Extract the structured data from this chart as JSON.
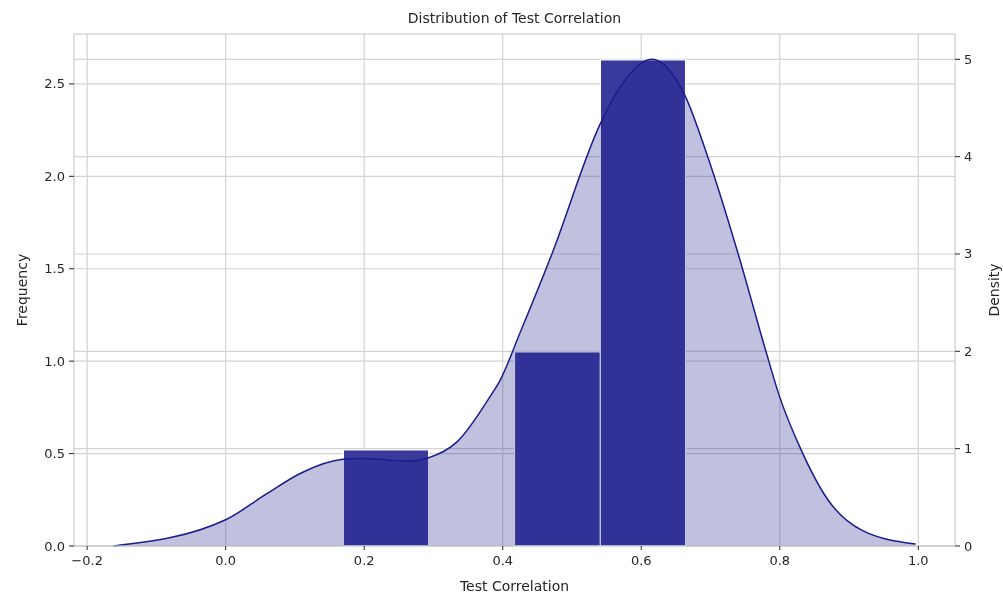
{
  "chart_data": {
    "type": "histogram",
    "title": "Distribution of Test Correlation",
    "xlabel": "Test Correlation",
    "ylabel": "Frequency",
    "y2label": "Density",
    "xlim": [
      -0.219,
      1.053
    ],
    "xticks": [
      {
        "value": -0.2,
        "label": "−0.2"
      },
      {
        "value": 0,
        "label": "0.0"
      },
      {
        "value": 0.2,
        "label": "0.2"
      },
      {
        "value": 0.4,
        "label": "0.4"
      },
      {
        "value": 0.6,
        "label": "0.6"
      },
      {
        "value": 0.8,
        "label": "0.8"
      },
      {
        "value": 1.0,
        "label": "1.0"
      }
    ],
    "ylim": [
      0,
      2.77
    ],
    "yticks": [
      {
        "value": 0,
        "label": "0.0"
      },
      {
        "value": 0.5,
        "label": "0.5"
      },
      {
        "value": 1.0,
        "label": "1.0"
      },
      {
        "value": 1.5,
        "label": "1.5"
      },
      {
        "value": 2.0,
        "label": "2.0"
      },
      {
        "value": 2.5,
        "label": "2.5"
      }
    ],
    "y2lim": [
      0,
      5.26
    ],
    "y2ticks": [
      0,
      1,
      2,
      3,
      4,
      5
    ],
    "grid": true,
    "series": [
      {
        "color": "#3a3a9c",
        "bins": [
          0.17,
          0.293,
          0.417,
          0.541,
          0.664
        ],
        "values": [
          0.52,
          0,
          1.05,
          2.63
        ]
      },
      {
        "type": "area",
        "axis": "y2",
        "color": "#1c1c8c",
        "x": [
          -0.162,
          0,
          0.06,
          0.109,
          0.169,
          0.2,
          0.259,
          0.294,
          0.334,
          0.383,
          0.396,
          0.425,
          0.471,
          0.541,
          0.571,
          0.615,
          0.663,
          0.695,
          0.74,
          0.78,
          0.799,
          0.83,
          0.869,
          0.919,
          0.996
        ],
        "values": [
          0,
          0.27,
          0.54,
          0.75,
          0.89,
          0.9,
          0.87,
          0.91,
          1.07,
          1.55,
          1.7,
          2.19,
          3.0,
          4.34,
          4.73,
          5.0,
          4.63,
          4.02,
          3.0,
          2.0,
          1.55,
          1.0,
          0.48,
          0.16,
          0.02
        ]
      }
    ]
  }
}
